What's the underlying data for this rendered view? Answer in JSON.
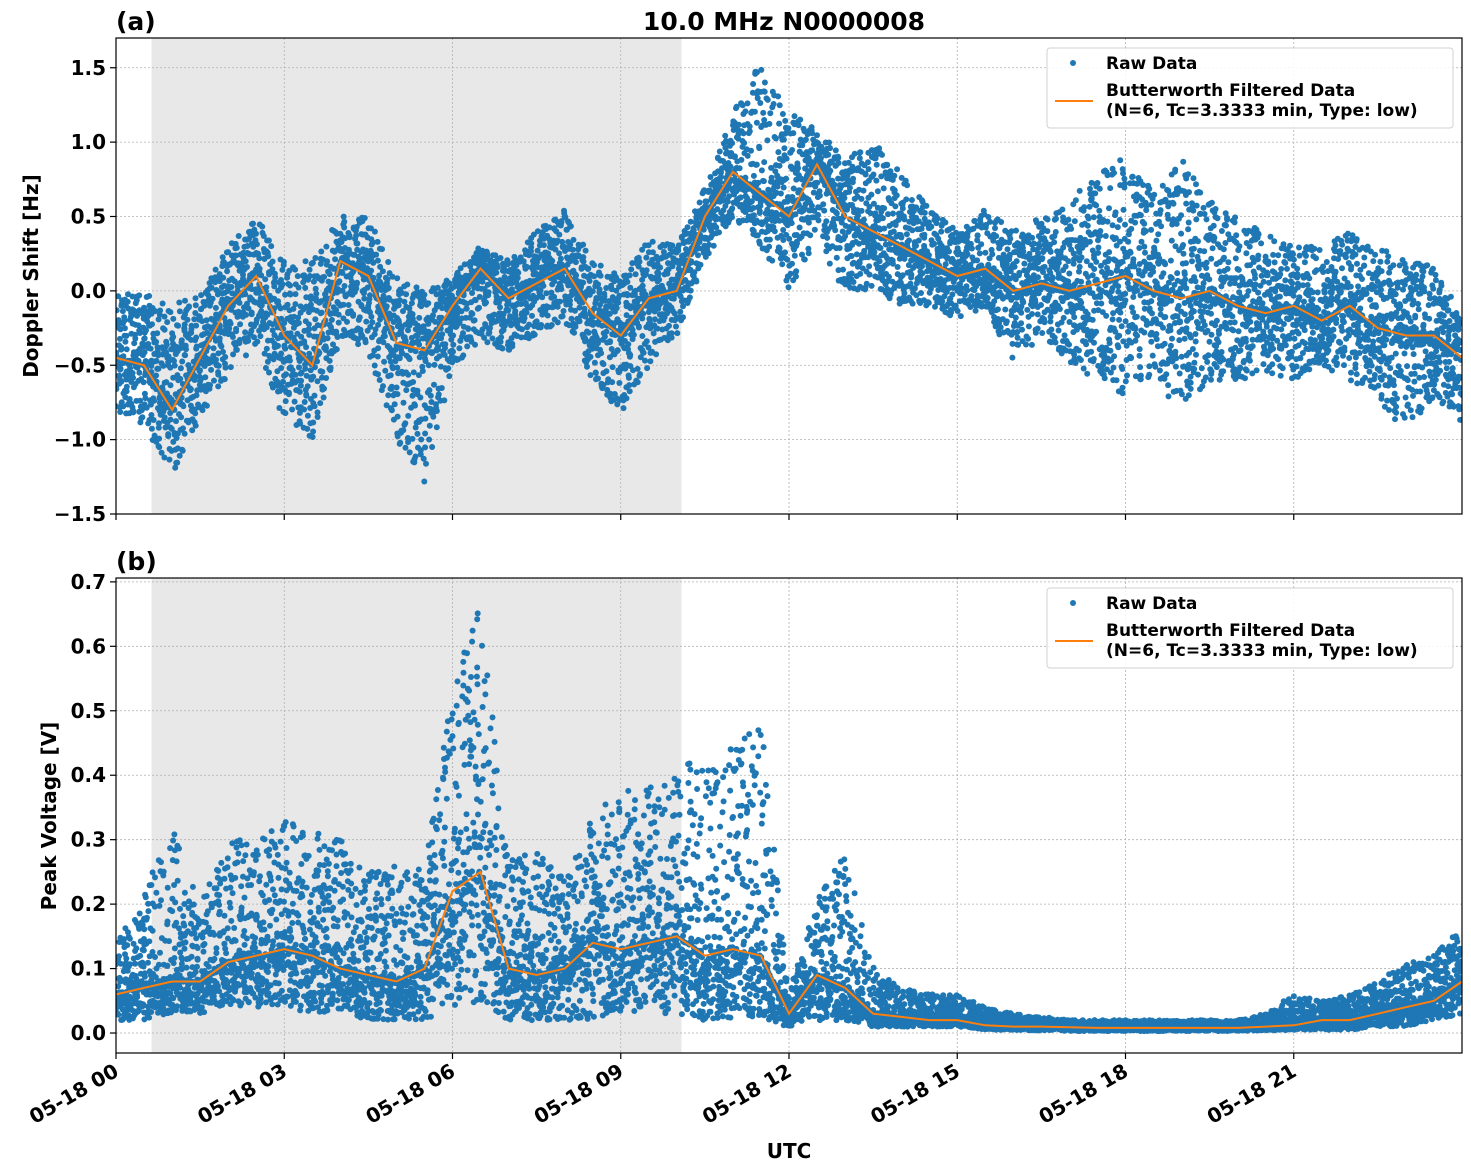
{
  "title": "10.0 MHz N0000008",
  "colors": {
    "raw": "#1f77b4",
    "filtered": "#ff7f0e",
    "shade": "#e8e8e8",
    "grid": "#b0b0b0"
  },
  "legend": {
    "raw": "Raw Data",
    "filtered_1": "Butterworth Filtered Data",
    "filtered_2": "(N=6, Tc=3.3333 min, Type: low)",
    "placement": "top-right"
  },
  "xaxis": {
    "label": "UTC",
    "ticks": [
      "05-18 00",
      "05-18 03",
      "05-18 06",
      "05-18 09",
      "05-18 12",
      "05-18 15",
      "05-18 18",
      "05-18 21"
    ],
    "range": [
      "05-18 00:00",
      "05-19 00:00"
    ]
  },
  "chart_data": [
    {
      "type": "scatter",
      "panel_label": "(a)",
      "ylabel": "Doppler Shift [Hz]",
      "ylim": [
        -1.5,
        1.7
      ],
      "yticks": [
        "−1.5",
        "−1.0",
        "−0.5",
        "0.0",
        "0.5",
        "1.0",
        "1.5"
      ],
      "ytick_values": [
        -1.5,
        -1.0,
        -0.5,
        0.0,
        0.5,
        1.0,
        1.5
      ],
      "grid": true,
      "shaded_region": [
        "00:38",
        "10:05"
      ],
      "x": [
        "00:00",
        "00:30",
        "01:00",
        "01:30",
        "02:00",
        "02:30",
        "03:00",
        "03:30",
        "04:00",
        "04:30",
        "05:00",
        "05:30",
        "06:00",
        "06:30",
        "07:00",
        "07:30",
        "08:00",
        "08:30",
        "09:00",
        "09:30",
        "10:00",
        "10:30",
        "11:00",
        "11:30",
        "12:00",
        "12:30",
        "13:00",
        "13:30",
        "14:00",
        "14:30",
        "15:00",
        "15:30",
        "16:00",
        "16:30",
        "17:00",
        "17:30",
        "18:00",
        "18:30",
        "19:00",
        "19:30",
        "20:00",
        "20:30",
        "21:00",
        "21:30",
        "22:00",
        "22:30",
        "23:00",
        "23:30",
        "24:00"
      ],
      "series": [
        {
          "name": "Butterworth Filtered Data",
          "values": [
            -0.45,
            -0.5,
            -0.8,
            -0.45,
            -0.1,
            0.1,
            -0.3,
            -0.5,
            0.2,
            0.1,
            -0.35,
            -0.4,
            -0.1,
            0.15,
            -0.05,
            0.05,
            0.15,
            -0.15,
            -0.3,
            -0.05,
            0.0,
            0.5,
            0.8,
            0.65,
            0.5,
            0.85,
            0.5,
            0.4,
            0.3,
            0.2,
            0.1,
            0.15,
            0.0,
            0.05,
            0.0,
            0.05,
            0.1,
            0.0,
            -0.05,
            0.0,
            -0.1,
            -0.15,
            -0.1,
            -0.2,
            -0.1,
            -0.25,
            -0.3,
            -0.3,
            -0.45
          ]
        },
        {
          "name": "Raw Data",
          "low": [
            -0.8,
            -0.9,
            -1.25,
            -0.85,
            -0.6,
            -0.35,
            -0.9,
            -1.0,
            -0.3,
            -0.4,
            -1.0,
            -1.3,
            -0.5,
            -0.35,
            -0.4,
            -0.3,
            -0.2,
            -0.6,
            -0.85,
            -0.5,
            -0.3,
            0.2,
            0.5,
            0.3,
            0.0,
            0.3,
            0.0,
            0.0,
            -0.1,
            -0.1,
            -0.2,
            -0.1,
            -0.5,
            -0.3,
            -0.5,
            -0.6,
            -0.7,
            -0.6,
            -0.8,
            -0.6,
            -0.6,
            -0.55,
            -0.6,
            -0.5,
            -0.6,
            -0.7,
            -1.0,
            -0.7,
            -0.9
          ],
          "high": [
            0.0,
            0.0,
            -0.1,
            0.0,
            0.3,
            0.5,
            0.2,
            0.2,
            0.5,
            0.5,
            0.1,
            0.0,
            0.1,
            0.3,
            0.2,
            0.4,
            0.55,
            0.2,
            0.1,
            0.35,
            0.3,
            0.7,
            1.2,
            1.55,
            1.2,
            1.1,
            0.9,
            1.0,
            0.8,
            0.55,
            0.4,
            0.55,
            0.4,
            0.5,
            0.6,
            0.8,
            0.9,
            0.7,
            0.9,
            0.6,
            0.5,
            0.4,
            0.3,
            0.3,
            0.4,
            0.3,
            0.2,
            0.2,
            -0.2
          ]
        }
      ]
    },
    {
      "type": "scatter",
      "panel_label": "(b)",
      "ylabel": "Peak Voltage [V]",
      "ylim": [
        -0.031,
        0.706
      ],
      "yticks": [
        "0.0",
        "0.1",
        "0.2",
        "0.3",
        "0.4",
        "0.5",
        "0.6",
        "0.7"
      ],
      "ytick_values": [
        0.0,
        0.1,
        0.2,
        0.3,
        0.4,
        0.5,
        0.6,
        0.7
      ],
      "grid": true,
      "shaded_region": [
        "00:38",
        "10:05"
      ],
      "x": [
        "00:00",
        "00:30",
        "01:00",
        "01:30",
        "02:00",
        "02:30",
        "03:00",
        "03:30",
        "04:00",
        "04:30",
        "05:00",
        "05:30",
        "06:00",
        "06:30",
        "07:00",
        "07:30",
        "08:00",
        "08:30",
        "09:00",
        "09:30",
        "10:00",
        "10:30",
        "11:00",
        "11:30",
        "12:00",
        "12:30",
        "13:00",
        "13:30",
        "14:00",
        "14:30",
        "15:00",
        "15:30",
        "16:00",
        "16:30",
        "17:00",
        "17:30",
        "18:00",
        "18:30",
        "19:00",
        "19:30",
        "20:00",
        "20:30",
        "21:00",
        "21:30",
        "22:00",
        "22:30",
        "23:00",
        "23:30",
        "24:00"
      ],
      "series": [
        {
          "name": "Butterworth Filtered Data",
          "values": [
            0.06,
            0.07,
            0.08,
            0.08,
            0.11,
            0.12,
            0.13,
            0.12,
            0.1,
            0.09,
            0.08,
            0.1,
            0.22,
            0.25,
            0.1,
            0.09,
            0.1,
            0.14,
            0.13,
            0.14,
            0.15,
            0.12,
            0.13,
            0.12,
            0.03,
            0.09,
            0.07,
            0.03,
            0.025,
            0.02,
            0.02,
            0.012,
            0.01,
            0.01,
            0.009,
            0.008,
            0.008,
            0.008,
            0.008,
            0.008,
            0.008,
            0.01,
            0.012,
            0.02,
            0.02,
            0.03,
            0.04,
            0.05,
            0.08
          ]
        },
        {
          "name": "Raw Data",
          "low": [
            0.02,
            0.02,
            0.03,
            0.03,
            0.04,
            0.04,
            0.04,
            0.03,
            0.03,
            0.02,
            0.02,
            0.02,
            0.04,
            0.05,
            0.02,
            0.02,
            0.02,
            0.02,
            0.03,
            0.03,
            0.03,
            0.02,
            0.02,
            0.02,
            0.01,
            0.02,
            0.02,
            0.01,
            0.01,
            0.01,
            0.01,
            0.005,
            0.005,
            0.004,
            0.003,
            0.003,
            0.003,
            0.003,
            0.003,
            0.003,
            0.003,
            0.004,
            0.005,
            0.005,
            0.005,
            0.01,
            0.01,
            0.02,
            0.03
          ],
          "high": [
            0.14,
            0.22,
            0.32,
            0.2,
            0.3,
            0.3,
            0.33,
            0.32,
            0.3,
            0.25,
            0.26,
            0.26,
            0.54,
            0.67,
            0.27,
            0.28,
            0.24,
            0.34,
            0.39,
            0.38,
            0.4,
            0.45,
            0.44,
            0.49,
            0.06,
            0.21,
            0.28,
            0.1,
            0.07,
            0.06,
            0.06,
            0.04,
            0.03,
            0.025,
            0.02,
            0.02,
            0.02,
            0.02,
            0.02,
            0.02,
            0.02,
            0.03,
            0.06,
            0.05,
            0.06,
            0.08,
            0.11,
            0.12,
            0.17
          ]
        }
      ]
    }
  ]
}
